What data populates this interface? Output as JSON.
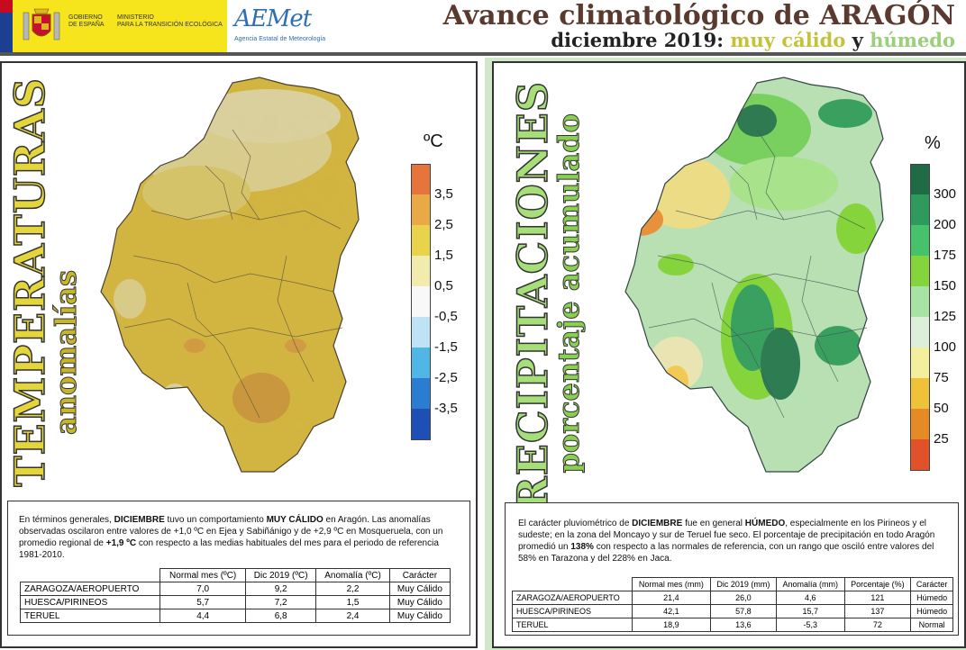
{
  "header": {
    "gobierno_line1": "GOBIERNO",
    "gobierno_line2": "DE ESPAÑA",
    "ministerio_line1": "MINISTERIO",
    "ministerio_line2": "PARA LA TRANSICIÓN ECOLÓGICA",
    "aemet_logo": "AEMet",
    "aemet_sub": "Agencia Estatal de Meteorología",
    "title_prefix": "Avance climatológico de",
    "title_region": "ARAGÓN",
    "subtitle_period": "diciembre 2019:",
    "subtitle_warm": "muy cálido",
    "subtitle_and": "y",
    "subtitle_wet": "húmedo"
  },
  "temperature": {
    "vertical_title": "TEMPERATURAS",
    "vertical_subtitle": "anomalías",
    "unit": "ºC",
    "legend": [
      {
        "label": "3,5",
        "color": "#e8743d"
      },
      {
        "label": "2,5",
        "color": "#e9a946"
      },
      {
        "label": "1,5",
        "color": "#e9d34a"
      },
      {
        "label": "0,5",
        "color": "#f1ecae"
      },
      {
        "label": "-0,5",
        "color": "#f8f8f8"
      },
      {
        "label": "-1,5",
        "color": "#bfe3f5"
      },
      {
        "label": "-2,5",
        "color": "#4fb6e6"
      },
      {
        "label": "-3,5",
        "color": "#2a7dd1"
      }
    ],
    "legend_bottom_color": "#1e4fb7",
    "summary_parts": [
      "En términos generales, ",
      "DICIEMBRE",
      " tuvo un comportamiento ",
      "MUY CÁLIDO",
      " en Aragón. Las anomalías observadas oscilaron entre valores de +1,0 ºC en Ejea y Sabiñánigo y de +2,9 ºC en Mosqueruela, con un promedio regional de ",
      "+1,9 ºC",
      " con respecto a las medias habituales del mes para el periodo de referencia 1981-2010."
    ],
    "table_headers": [
      "Normal mes (ºC)",
      "Dic 2019 (ºC)",
      "Anomalía (ºC)",
      "Carácter"
    ],
    "table_rows": [
      [
        "ZARAGOZA/AEROPUERTO",
        "7,0",
        "9,2",
        "2,2",
        "Muy Cálido"
      ],
      [
        "HUESCA/PIRINEOS",
        "5,7",
        "7,2",
        "1,5",
        "Muy Cálido"
      ],
      [
        "TERUEL",
        "4,4",
        "6,8",
        "2,4",
        "Muy Cálido"
      ]
    ]
  },
  "precipitation": {
    "vertical_title": "PRECIPITACIONES",
    "vertical_subtitle": "porcentaje acumulado",
    "unit": "%",
    "legend": [
      {
        "label": "300",
        "color": "#1f6b45"
      },
      {
        "label": "200",
        "color": "#2e9a5c"
      },
      {
        "label": "175",
        "color": "#46c36a"
      },
      {
        "label": "150",
        "color": "#86d43c"
      },
      {
        "label": "125",
        "color": "#a7e3a2"
      },
      {
        "label": "100",
        "color": "#dcf0d9"
      },
      {
        "label": "75",
        "color": "#f4ef9c"
      },
      {
        "label": "50",
        "color": "#f0c23a"
      },
      {
        "label": "25",
        "color": "#e58a25"
      }
    ],
    "legend_bottom_color": "#e2522a",
    "summary_parts": [
      "El carácter pluviométrico de ",
      "DICIEMBRE",
      " fue en general ",
      "HÚMEDO",
      ", especialmente en los Pirineos y el sudeste; en la zona del Moncayo y sur de Teruel fue seco. El porcentaje de precipitación en todo Aragón promedió un ",
      "138%",
      " con respecto a las normales de referencia, con un rango que osciló entre valores del 58% en Tarazona y del 228% en Jaca."
    ],
    "table_headers": [
      "Normal mes (mm)",
      "Dic 2019 (mm)",
      "Anomalía (mm)",
      "Porcentaje (%)",
      "Carácter"
    ],
    "table_rows": [
      [
        "ZARAGOZA/AEROPUERTO",
        "21,4",
        "26,0",
        "4,6",
        "121",
        "Húmedo"
      ],
      [
        "HUESCA/PIRINEOS",
        "42,1",
        "57,8",
        "15,7",
        "137",
        "Húmedo"
      ],
      [
        "TERUEL",
        "18,9",
        "13,6",
        "-5,3",
        "72",
        "Normal"
      ]
    ]
  }
}
